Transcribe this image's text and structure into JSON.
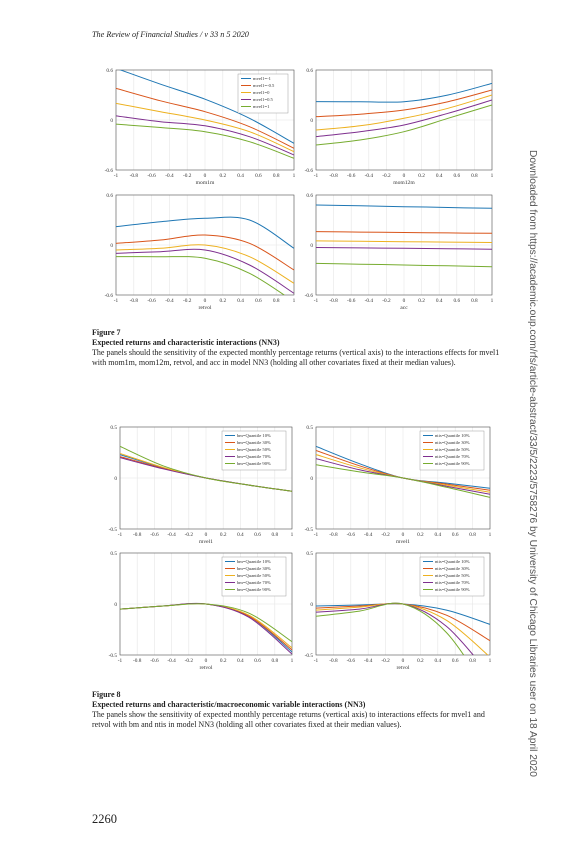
{
  "header": "The Review of Financial Studies / v 33 n 5 2020",
  "page_number": "2260",
  "side_note": "Downloaded from https://academic.oup.com/rfs/article-abstract/33/5/2223/5758276 by University of Chicago Libraries user on 18 April 2020",
  "figure7": {
    "label": "Figure 7",
    "title": "Expected returns and characteristic interactions (NN3)",
    "body": "The panels should the sensitivity of the expected monthly percentage returns (vertical axis) to the interactions effects for mvel1 with mom1m, mom12m, retvol, and acc in model NN3 (holding all other covariates fixed at their median values)."
  },
  "figure8": {
    "label": "Figure 8",
    "title": "Expected returns and characteristic/macroeconomic variable interactions (NN3)",
    "body": "The panels show the sensitivity of expected monthly percentage returns (vertical axis) to interactions effects for mvel1 and retvol with bm and ntis in model NN3 (holding all other covariates fixed at their median values)."
  },
  "colors": [
    "#1f77b4",
    "#d9541a",
    "#edb120",
    "#7e2f8e",
    "#77ac30"
  ],
  "chart_data": [
    {
      "type": "line",
      "xlabel": "mom1m",
      "ylim": [
        -0.6,
        0.6
      ],
      "yticks": [
        "0.6",
        "0",
        "-0.6"
      ],
      "xticks": [
        "-1",
        "-0.8",
        "-0.6",
        "-0.4",
        "-0.2",
        "0",
        "0.2",
        "0.4",
        "0.6",
        "0.8",
        "1"
      ],
      "legend": [
        "mvel1=-1",
        "mvel1=-0.5",
        "mvel1=0",
        "mvel1=0.5",
        "mvel1=1"
      ],
      "x": [
        -1,
        -0.5,
        0,
        0.5,
        1
      ],
      "series": [
        [
          0.62,
          0.43,
          0.25,
          0.02,
          -0.28
        ],
        [
          0.38,
          0.23,
          0.1,
          -0.08,
          -0.34
        ],
        [
          0.2,
          0.1,
          0.0,
          -0.14,
          -0.38
        ],
        [
          0.05,
          -0.02,
          -0.07,
          -0.2,
          -0.42
        ],
        [
          -0.05,
          -0.09,
          -0.14,
          -0.26,
          -0.46
        ]
      ]
    },
    {
      "type": "line",
      "xlabel": "mom12m",
      "ylim": [
        -0.6,
        0.6
      ],
      "yticks": [
        "0.6",
        "0",
        "-0.6"
      ],
      "xticks": [
        "-1",
        "-0.8",
        "-0.6",
        "-0.4",
        "-0.2",
        "0",
        "0.2",
        "0.4",
        "0.6",
        "0.8",
        "1"
      ],
      "x": [
        -1,
        -0.5,
        0,
        0.5,
        1
      ],
      "series": [
        [
          0.22,
          0.22,
          0.22,
          0.3,
          0.44
        ],
        [
          0.04,
          0.07,
          0.12,
          0.22,
          0.36
        ],
        [
          -0.12,
          -0.07,
          0.02,
          0.14,
          0.3
        ],
        [
          -0.2,
          -0.14,
          -0.06,
          0.08,
          0.24
        ],
        [
          -0.3,
          -0.24,
          -0.14,
          0.02,
          0.18
        ]
      ]
    },
    {
      "type": "line",
      "xlabel": "retvol",
      "ylim": [
        -0.6,
        0.6
      ],
      "yticks": [
        "0.6",
        "0",
        "-0.6"
      ],
      "xticks": [
        "-1",
        "-0.8",
        "-0.6",
        "-0.4",
        "-0.2",
        "0",
        "0.2",
        "0.4",
        "0.6",
        "0.8",
        "1"
      ],
      "x": [
        -1,
        -0.5,
        0,
        0.5,
        1
      ],
      "series": [
        [
          0.22,
          0.28,
          0.32,
          0.3,
          -0.04
        ],
        [
          0.02,
          0.06,
          0.12,
          0.02,
          -0.3
        ],
        [
          -0.06,
          -0.04,
          0.0,
          -0.14,
          -0.46
        ],
        [
          -0.1,
          -0.08,
          -0.06,
          -0.24,
          -0.58
        ],
        [
          -0.14,
          -0.14,
          -0.16,
          -0.34,
          -0.68
        ]
      ]
    },
    {
      "type": "line",
      "xlabel": "acc",
      "ylim": [
        -0.6,
        0.6
      ],
      "yticks": [
        "0.6",
        "0",
        "-0.6"
      ],
      "xticks": [
        "-1",
        "-0.8",
        "-0.6",
        "-0.4",
        "-0.2",
        "0",
        "0.2",
        "0.4",
        "0.6",
        "0.8",
        "1"
      ],
      "x": [
        -1,
        -0.5,
        0,
        0.5,
        1
      ],
      "series": [
        [
          0.48,
          0.47,
          0.46,
          0.45,
          0.44
        ],
        [
          0.16,
          0.155,
          0.15,
          0.145,
          0.14
        ],
        [
          0.05,
          0.045,
          0.04,
          0.035,
          0.03
        ],
        [
          -0.03,
          -0.035,
          -0.04,
          -0.045,
          -0.05
        ],
        [
          -0.22,
          -0.23,
          -0.24,
          -0.25,
          -0.26
        ]
      ]
    },
    {
      "type": "line",
      "xlabel": "mvel1",
      "ylim": [
        -0.5,
        0.5
      ],
      "yticks": [
        "0.5",
        "0",
        "-0.5"
      ],
      "xticks": [
        "-1",
        "-0.8",
        "-0.6",
        "-0.4",
        "-0.2",
        "0",
        "0.2",
        "0.4",
        "0.6",
        "0.8",
        "1"
      ],
      "legend": [
        "bm=Quantile 10%",
        "bm=Quantile 30%",
        "bm=Quantile 50%",
        "bm=Quantile 70%",
        "bm=Quantile 90%"
      ],
      "x": [
        -1,
        -0.5,
        0,
        0.5,
        1
      ],
      "series": [
        [
          0.23,
          0.1,
          0.0,
          -0.07,
          -0.13
        ],
        [
          0.21,
          0.095,
          0.0,
          -0.07,
          -0.13
        ],
        [
          0.24,
          0.105,
          0.0,
          -0.07,
          -0.13
        ],
        [
          0.2,
          0.09,
          0.0,
          -0.07,
          -0.13
        ],
        [
          0.31,
          0.12,
          0.0,
          -0.07,
          -0.13
        ]
      ]
    },
    {
      "type": "line",
      "xlabel": "mvel1",
      "ylim": [
        -0.5,
        0.5
      ],
      "yticks": [
        "0.5",
        "0",
        "-0.5"
      ],
      "xticks": [
        "-1",
        "-0.8",
        "-0.6",
        "-0.4",
        "-0.2",
        "0",
        "0.2",
        "0.4",
        "0.6",
        "0.8",
        "1"
      ],
      "legend": [
        "ntis=Quantile 10%",
        "ntis=Quantile 30%",
        "ntis=Quantile 50%",
        "ntis=Quantile 70%",
        "ntis=Quantile 90%"
      ],
      "x": [
        -1,
        -0.5,
        0,
        0.5,
        1
      ],
      "series": [
        [
          0.31,
          0.14,
          0.0,
          -0.05,
          -0.1
        ],
        [
          0.27,
          0.12,
          0.0,
          -0.06,
          -0.12
        ],
        [
          0.23,
          0.1,
          0.0,
          -0.07,
          -0.14
        ],
        [
          0.19,
          0.08,
          0.0,
          -0.08,
          -0.16
        ],
        [
          0.13,
          0.06,
          0.0,
          -0.09,
          -0.19
        ]
      ]
    },
    {
      "type": "line",
      "xlabel": "retvol",
      "ylim": [
        -0.5,
        0.5
      ],
      "yticks": [
        "0.5",
        "0",
        "-0.5"
      ],
      "xticks": [
        "-1",
        "-0.8",
        "-0.6",
        "-0.4",
        "-0.2",
        "0",
        "0.2",
        "0.4",
        "0.6",
        "0.8",
        "1"
      ],
      "legend": [
        "bm=Quantile 10%",
        "bm=Quantile 30%",
        "bm=Quantile 50%",
        "bm=Quantile 70%",
        "bm=Quantile 90%"
      ],
      "x": [
        -1,
        -0.5,
        0,
        0.5,
        1
      ],
      "series": [
        [
          -0.05,
          -0.02,
          0.0,
          -0.12,
          -0.47
        ],
        [
          -0.05,
          -0.02,
          0.0,
          -0.12,
          -0.45
        ],
        [
          -0.05,
          -0.02,
          0.0,
          -0.11,
          -0.43
        ],
        [
          -0.05,
          -0.02,
          0.0,
          -0.13,
          -0.49
        ],
        [
          -0.05,
          -0.02,
          0.0,
          -0.09,
          -0.37
        ]
      ]
    },
    {
      "type": "line",
      "xlabel": "retvol",
      "ylim": [
        -0.5,
        0.5
      ],
      "yticks": [
        "0.5",
        "0",
        "-0.5"
      ],
      "xticks": [
        "-1",
        "-0.8",
        "-0.6",
        "-0.4",
        "-0.2",
        "0",
        "0.2",
        "0.4",
        "0.6",
        "0.8",
        "1"
      ],
      "legend": [
        "ntis=Quantile 10%",
        "ntis=Quantile 30%",
        "ntis=Quantile 50%",
        "ntis=Quantile 70%",
        "ntis=Quantile 90%"
      ],
      "x": [
        -1,
        -0.5,
        0,
        0.5,
        1
      ],
      "series": [
        [
          -0.02,
          -0.01,
          0.0,
          -0.06,
          -0.2
        ],
        [
          -0.04,
          -0.02,
          0.0,
          -0.11,
          -0.36
        ],
        [
          -0.06,
          -0.03,
          0.0,
          -0.16,
          -0.52
        ],
        [
          -0.08,
          -0.05,
          0.0,
          -0.22,
          -0.7
        ],
        [
          -0.12,
          -0.07,
          0.0,
          -0.28,
          -0.9
        ]
      ]
    }
  ]
}
